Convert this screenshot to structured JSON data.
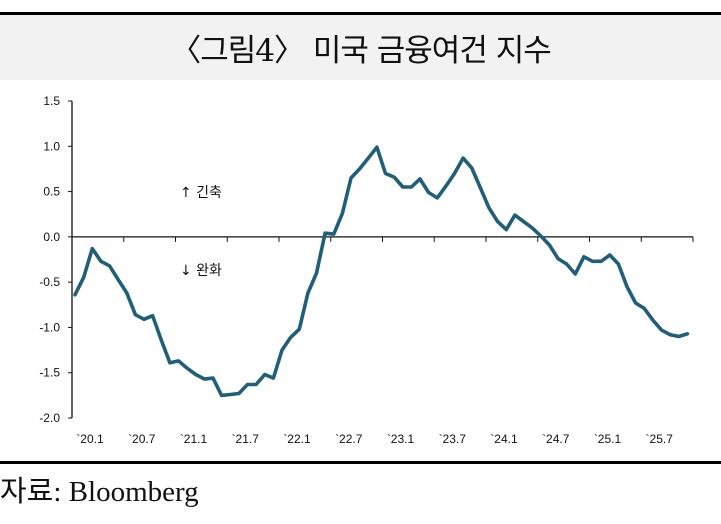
{
  "title": "〈그림4〉 미국 금융여건 지수",
  "source": "자료: Bloomberg",
  "chart_data": {
    "type": "line",
    "title": "〈그림4〉 미국 금융여건 지수",
    "xlabel": "",
    "ylabel": "",
    "ylim": [
      -2.0,
      1.5
    ],
    "yticks": [
      1.5,
      1.0,
      0.5,
      0.0,
      -0.5,
      -1.0,
      -1.5,
      -2.0
    ],
    "ytick_labels": [
      "1.5",
      "1.0",
      "0.5",
      "0.0",
      "-0.5",
      "-1.0",
      "-1.5",
      "-2.0"
    ],
    "xtick_labels": [
      "`20.1",
      "`20.7",
      "`21.1",
      "`21.7",
      "`22.1",
      "`22.7",
      "`23.1",
      "`23.7",
      "`24.1",
      "`24.7",
      "`25.1",
      "`25.7"
    ],
    "x_start": "2020-01",
    "x_frequency": "monthly",
    "grid": false,
    "annotations": [
      "↑ 긴축",
      "↓ 완화"
    ],
    "color": "#1f5f7a",
    "series": [
      {
        "name": "미국 금융여건 지수",
        "values": [
          -0.64,
          -0.45,
          -0.13,
          -0.27,
          -0.32,
          -0.47,
          -0.62,
          -0.86,
          -0.91,
          -0.87,
          -1.14,
          -1.39,
          -1.37,
          -1.45,
          -1.52,
          -1.57,
          -1.56,
          -1.75,
          -1.74,
          -1.73,
          -1.63,
          -1.63,
          -1.52,
          -1.56,
          -1.25,
          -1.11,
          -1.02,
          -0.62,
          -0.4,
          0.04,
          0.03,
          0.26,
          0.65,
          0.75,
          0.87,
          0.99,
          0.7,
          0.66,
          0.55,
          0.55,
          0.64,
          0.49,
          0.43,
          0.56,
          0.7,
          0.87,
          0.76,
          0.54,
          0.32,
          0.17,
          0.08,
          0.24,
          0.17,
          0.1,
          0.01,
          -0.09,
          -0.24,
          -0.3,
          -0.41,
          -0.22,
          -0.27,
          -0.27,
          -0.2,
          -0.3,
          -0.55,
          -0.73,
          -0.79,
          -0.92,
          -1.03,
          -1.08,
          -1.1,
          -1.07
        ]
      }
    ]
  }
}
